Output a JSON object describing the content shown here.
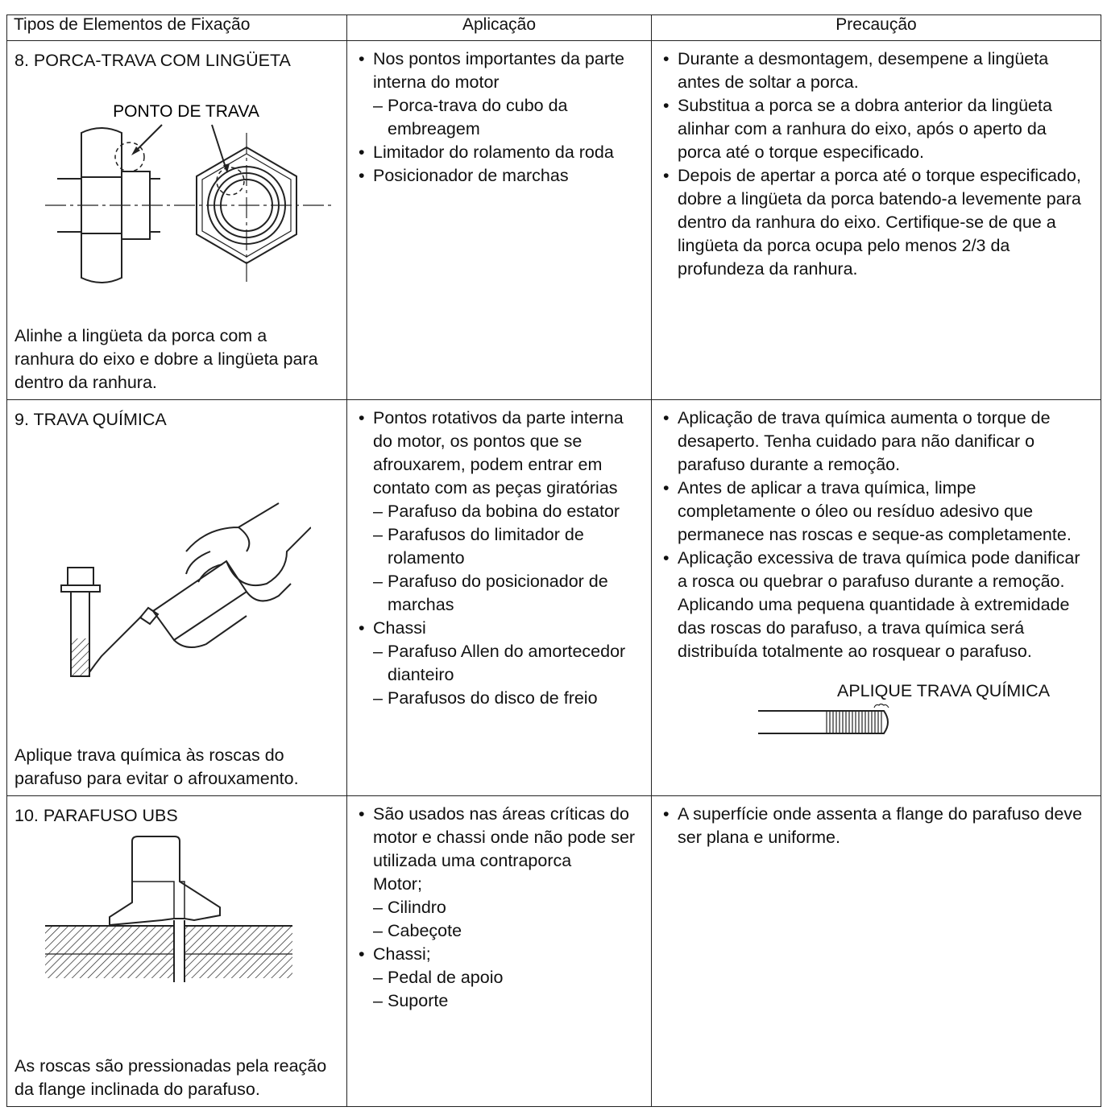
{
  "header": [
    "Tipos de Elementos de Fixação",
    "Aplicação",
    "Precaução"
  ],
  "rows": [
    {
      "type": "8. PORCA-TRAVA COM LINGÜETA",
      "figure_label": "PONTO DE TRAVA",
      "caption": "Alinhe a lingüeta da porca com a ranhura do eixo e dobre a lingüeta para dentro da ranhura.",
      "application": [
        {
          "text": "Nos pontos importantes da parte interna do motor",
          "sub": [
            "Porca-trava do cubo da embreagem"
          ]
        },
        {
          "text": "Limitador do rolamento da roda"
        },
        {
          "text": "Posicionador de marchas"
        }
      ],
      "precaution": [
        "Durante a desmontagem, desempene a lingüeta antes de soltar a porca.",
        "Substitua a porca se a dobra anterior da lingüeta alinhar com a ranhura do eixo, após o aperto da porca até o torque especificado.",
        "Depois de apertar a porca até o torque especificado, dobre a lingüeta da porca batendo-a levemente para dentro da ranhura do eixo. Certifique-se de que a lingüeta da porca ocupa pelo menos 2/3 da profundeza da ranhura."
      ]
    },
    {
      "type": "9. TRAVA QUÍMICA",
      "caption": "Aplique trava química às roscas do parafuso para evitar o afrouxamento.",
      "application": [
        {
          "text": "Pontos rotativos da parte interna do motor, os pontos que se afrouxarem, podem entrar em contato com as peças giratórias",
          "sub": [
            "Parafuso da bobina do estator",
            "Parafusos do limitador de rolamento",
            "Parafuso do posicionador de marchas"
          ]
        },
        {
          "text": "Chassi",
          "sub": [
            "Parafuso Allen do amortecedor dianteiro",
            "Parafusos do disco de freio"
          ]
        }
      ],
      "precaution": [
        "Aplicação de trava química aumenta o torque de desaperto. Tenha cuidado para não danificar o parafuso durante a remoção.",
        "Antes de aplicar a trava química, limpe completamente o óleo ou resíduo adesivo que permanece nas roscas e seque-as completamente.",
        "Aplicação excessiva de trava química pode danificar a rosca ou quebrar o parafuso durante a remoção. Aplicando uma pequena quantidade à extremidade das roscas do parafuso, a trava química será distribuída totalmente ao rosquear o parafuso."
      ],
      "precaution_figure_label": "APLIQUE TRAVA QUÍMICA"
    },
    {
      "type": "10. PARAFUSO UBS",
      "caption": "As roscas são pressionadas pela reação da flange inclinada do parafuso.",
      "application": [
        {
          "text": "São usados nas áreas críticas do motor e chassi onde não pode ser utilizada uma contraporca",
          "note": "Motor;",
          "sub": [
            "Cilindro",
            "Cabeçote"
          ]
        },
        {
          "text": "Chassi;",
          "sub": [
            "Pedal de apoio",
            "Suporte"
          ]
        }
      ],
      "precaution": [
        "A superfície onde assenta a flange do parafuso deve ser plana e uniforme."
      ]
    }
  ]
}
